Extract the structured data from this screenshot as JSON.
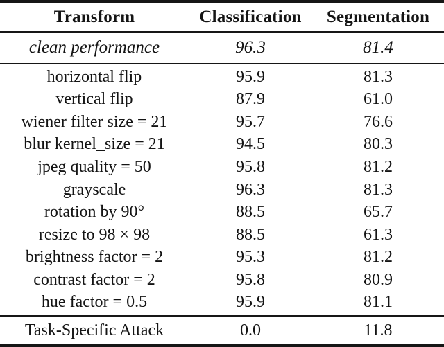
{
  "table": {
    "columns": [
      "Transform",
      "Classification",
      "Segmentation"
    ],
    "clean_row": {
      "label": "clean performance",
      "classification": "96.3",
      "segmentation": "81.4"
    },
    "rows": [
      {
        "label": "horizontal flip",
        "classification": "95.9",
        "segmentation": "81.3"
      },
      {
        "label": "vertical flip",
        "classification": "87.9",
        "segmentation": "61.0"
      },
      {
        "label": "wiener filter size = 21",
        "classification": "95.7",
        "segmentation": "76.6"
      },
      {
        "label": "blur kernel_size = 21",
        "classification": "94.5",
        "segmentation": "80.3"
      },
      {
        "label": "jpeg quality = 50",
        "classification": "95.8",
        "segmentation": "81.2"
      },
      {
        "label": "grayscale",
        "classification": "96.3",
        "segmentation": "81.3"
      },
      {
        "label": "rotation by 90°",
        "classification": "88.5",
        "segmentation": "65.7"
      },
      {
        "label": "resize to 98 × 98",
        "classification": "88.5",
        "segmentation": "61.3"
      },
      {
        "label": "brightness factor = 2",
        "classification": "95.3",
        "segmentation": "81.2"
      },
      {
        "label": "contrast factor = 2",
        "classification": "95.8",
        "segmentation": "80.9"
      },
      {
        "label": "hue factor = 0.5",
        "classification": "95.9",
        "segmentation": "81.1"
      }
    ],
    "attack_row": {
      "label": "Task-Specific Attack",
      "classification": "0.0",
      "segmentation": "11.8"
    }
  },
  "colors": {
    "background": "#ffffff",
    "text": "#141414",
    "rule": "#161616"
  }
}
